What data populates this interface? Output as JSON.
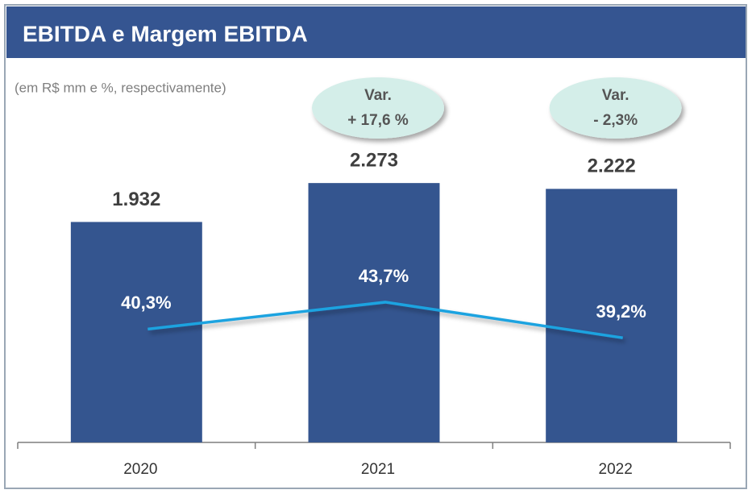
{
  "chart_data": {
    "type": "bar_line",
    "title": "EBITDA e Margem EBITDA",
    "subtitle": "(em R$ mm e %, respectivamente)",
    "categories": [
      "2020",
      "2021",
      "2022"
    ],
    "series": [
      {
        "name": "EBITDA",
        "color": "#34558f",
        "values": [
          1932,
          2273,
          2222
        ],
        "value_labels": [
          "1.932",
          "2.273",
          "2.222"
        ]
      },
      {
        "name": "Margem EBITDA",
        "color": "#1ca3e0",
        "axis": "y2",
        "values": [
          40.3,
          43.7,
          39.2
        ],
        "value_labels": [
          "40,3%",
          "43,7%",
          "39,2%"
        ]
      }
    ],
    "annotations": [
      [
        "Var.",
        "+ 17,6 %"
      ],
      [
        "Var.",
        "- 2,3%"
      ]
    ],
    "ylim": [
      0,
      2500
    ],
    "y2lim": [
      26,
      62
    ]
  }
}
